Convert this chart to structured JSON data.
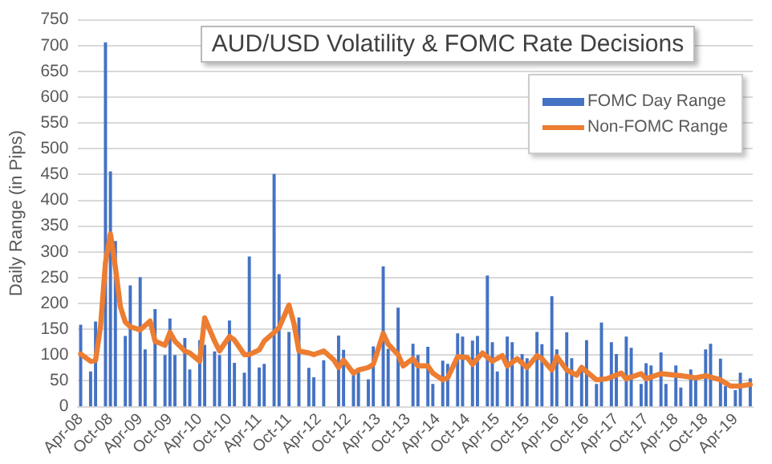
{
  "chart_data": {
    "type": "bar",
    "title": "AUD/USD Volatility & FOMC Rate Decisions",
    "ylabel": "Daily Range (in Pips)",
    "categories": [
      "Apr-08",
      null,
      null,
      null,
      null,
      null,
      "Oct-08",
      null,
      null,
      null,
      null,
      null,
      "Apr-09",
      null,
      null,
      null,
      null,
      null,
      "Oct-09",
      null,
      null,
      null,
      null,
      null,
      "Apr-10",
      null,
      null,
      null,
      null,
      null,
      "Oct-10",
      null,
      null,
      null,
      null,
      null,
      "Apr-11",
      null,
      null,
      null,
      null,
      null,
      "Oct-11",
      null,
      null,
      null,
      null,
      null,
      "Apr-12",
      null,
      null,
      null,
      null,
      null,
      "Oct-12",
      null,
      null,
      null,
      null,
      null,
      "Apr-13",
      null,
      null,
      null,
      null,
      null,
      "Oct-13",
      null,
      null,
      null,
      null,
      null,
      "Apr-14",
      null,
      null,
      null,
      null,
      null,
      "Oct-14",
      null,
      null,
      null,
      null,
      null,
      "Apr-15",
      null,
      null,
      null,
      null,
      null,
      "Oct-15",
      null,
      null,
      null,
      null,
      null,
      "Apr-16",
      null,
      null,
      null,
      null,
      null,
      "Oct-16",
      null,
      null,
      null,
      null,
      null,
      "Apr-17",
      null,
      null,
      null,
      null,
      null,
      "Oct-17",
      null,
      null,
      null,
      null,
      null,
      "Apr-18",
      null,
      null,
      null,
      null,
      null,
      "Oct-18",
      null,
      null,
      null,
      null,
      null,
      "Apr-19",
      null,
      null,
      null
    ],
    "series": [
      {
        "name": "FOMC Day Range",
        "color": "#4472c4",
        "values": [
          158,
          null,
          67,
          164,
          null,
          705,
          455,
          320,
          null,
          136,
          234,
          null,
          250,
          110,
          null,
          188,
          null,
          99,
          170,
          99,
          null,
          132,
          71,
          null,
          128,
          119,
          null,
          106,
          99,
          null,
          166,
          84,
          null,
          65,
          290,
          null,
          75,
          82,
          null,
          450,
          256,
          null,
          144,
          null,
          172,
          null,
          74,
          56,
          null,
          89,
          null,
          null,
          137,
          109,
          null,
          61,
          69,
          null,
          52,
          116,
          null,
          271,
          111,
          null,
          191,
          null,
          null,
          121,
          99,
          null,
          115,
          43,
          null,
          88,
          82,
          null,
          141,
          135,
          null,
          127,
          136,
          null,
          253,
          124,
          67,
          null,
          135,
          124,
          null,
          101,
          93,
          null,
          144,
          120,
          null,
          213,
          110,
          null,
          143,
          93,
          null,
          71,
          128,
          null,
          43,
          162,
          null,
          124,
          101,
          null,
          135,
          113,
          null,
          43,
          83,
          79,
          null,
          104,
          43,
          null,
          79,
          36,
          null,
          71,
          52,
          null,
          110,
          121,
          null,
          92,
          39,
          null,
          31,
          65,
          null,
          54
        ]
      },
      {
        "name": "Non-FOMC Range",
        "type": "line",
        "color": "#ed7d31",
        "values": [
          102,
          null,
          88,
          90,
          155,
          279,
          335,
          270,
          194,
          164,
          155,
          null,
          149,
          null,
          166,
          127,
          null,
          119,
          144,
          127,
          null,
          108,
          104,
          null,
          88,
          172,
          null,
          127,
          108,
          null,
          136,
          129,
          null,
          101,
          101,
          null,
          110,
          127,
          null,
          144,
          153,
          null,
          197,
          161,
          108,
          null,
          104,
          101,
          null,
          108,
          null,
          91,
          76,
          90,
          null,
          65,
          71,
          null,
          76,
          82,
          null,
          142,
          121,
          null,
          101,
          79,
          null,
          93,
          79,
          null,
          79,
          65,
          null,
          52,
          56,
          null,
          97,
          null,
          95,
          82,
          null,
          104,
          null,
          88,
          null,
          99,
          79,
          null,
          93,
          null,
          76,
          null,
          99,
          93,
          null,
          71,
          97,
          null,
          71,
          null,
          61,
          76,
          null,
          null,
          52,
          null,
          54,
          null,
          null,
          65,
          54,
          null,
          null,
          64,
          54,
          null,
          null,
          64,
          null,
          62,
          null,
          60,
          null,
          null,
          56,
          null,
          60,
          null,
          null,
          52,
          null,
          40,
          null,
          40,
          null,
          43
        ]
      }
    ],
    "ylim": [
      0,
      750
    ],
    "yticks": [
      0,
      50,
      100,
      150,
      200,
      250,
      300,
      350,
      400,
      450,
      500,
      550,
      600,
      650,
      700,
      750
    ],
    "grid": "y",
    "legend": "top right",
    "marker": "none",
    "line_style": "solid"
  }
}
